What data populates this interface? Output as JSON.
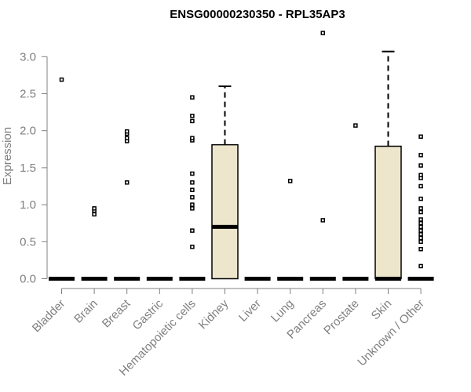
{
  "chart_data": {
    "type": "boxplot",
    "title": "ENSG00000230350 - RPL35AP3",
    "xlabel": "",
    "ylabel": "Expression",
    "ylim": [
      0,
      3.3
    ],
    "yticks": [
      "0.0",
      "0.5",
      "1.0",
      "1.5",
      "2.0",
      "2.5",
      "3.0"
    ],
    "box_fill": "#ede6cc",
    "categories": [
      {
        "name": "Bladder",
        "q1": 0,
        "median": 0,
        "q3": 0,
        "whisker_low": 0,
        "whisker_high": 0,
        "outliers": [
          2.69
        ]
      },
      {
        "name": "Brain",
        "q1": 0,
        "median": 0,
        "q3": 0,
        "whisker_low": 0,
        "whisker_high": 0,
        "outliers": [
          0.87,
          0.92,
          0.95
        ]
      },
      {
        "name": "Breast",
        "q1": 0,
        "median": 0,
        "q3": 0,
        "whisker_low": 0,
        "whisker_high": 0,
        "outliers": [
          1.3,
          1.86,
          1.9,
          1.96,
          1.99
        ]
      },
      {
        "name": "Gastric",
        "q1": 0,
        "median": 0,
        "q3": 0,
        "whisker_low": 0,
        "whisker_high": 0,
        "outliers": []
      },
      {
        "name": "Hematopoietic cells",
        "q1": 0,
        "median": 0,
        "q3": 0,
        "whisker_low": 0,
        "whisker_high": 0,
        "outliers": [
          0.43,
          0.65,
          0.95,
          1.0,
          1.1,
          1.2,
          1.3,
          1.42,
          1.87,
          1.9,
          2.13,
          2.2,
          2.45
        ]
      },
      {
        "name": "Kidney",
        "q1": 0,
        "median": 0.7,
        "q3": 1.81,
        "whisker_low": 0,
        "whisker_high": 2.6,
        "outliers": []
      },
      {
        "name": "Liver",
        "q1": 0,
        "median": 0,
        "q3": 0,
        "whisker_low": 0,
        "whisker_high": 0,
        "outliers": []
      },
      {
        "name": "Lung",
        "q1": 0,
        "median": 0,
        "q3": 0,
        "whisker_low": 0,
        "whisker_high": 0,
        "outliers": [
          1.32
        ]
      },
      {
        "name": "Pancreas",
        "q1": 0,
        "median": 0,
        "q3": 0,
        "whisker_low": 0,
        "whisker_high": 0,
        "outliers": [
          0.79,
          3.32
        ]
      },
      {
        "name": "Prostate",
        "q1": 0,
        "median": 0,
        "q3": 0,
        "whisker_low": 0,
        "whisker_high": 0,
        "outliers": [
          2.07
        ]
      },
      {
        "name": "Skin",
        "q1": 0,
        "median": 0,
        "q3": 1.79,
        "whisker_low": 0,
        "whisker_high": 3.07,
        "outliers": []
      },
      {
        "name": "Unknown / Other",
        "q1": 0,
        "median": 0,
        "q3": 0,
        "whisker_low": 0,
        "whisker_high": 0,
        "outliers": [
          0.17,
          0.4,
          0.5,
          0.55,
          0.6,
          0.65,
          0.7,
          0.75,
          0.8,
          0.9,
          0.95,
          1.08,
          1.25,
          1.36,
          1.4,
          1.53,
          1.67,
          1.92
        ]
      }
    ]
  }
}
